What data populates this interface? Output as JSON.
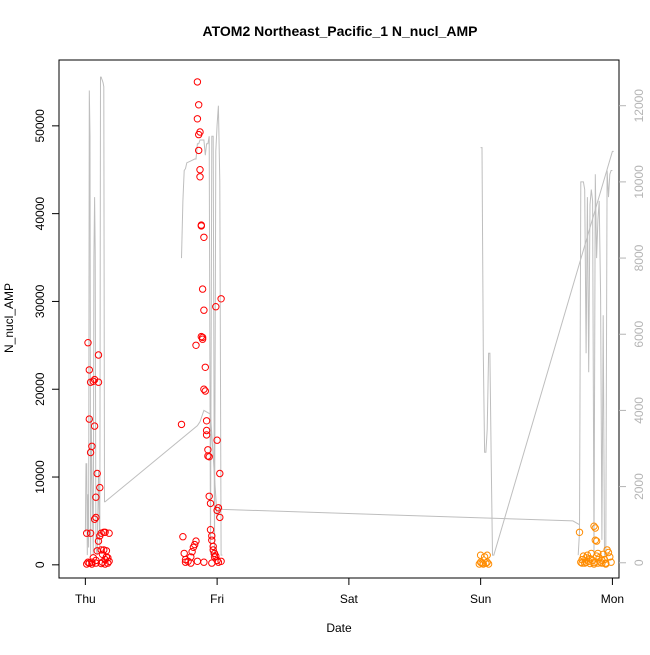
{
  "chart_data": {
    "type": "scatter",
    "title": "ATOM2 Northeast_Pacific_1 N_nucl_AMP",
    "xlabel": "Date",
    "ylabel": "N_nucl_AMP",
    "x_ticks": [
      "Thu",
      "Fri",
      "Sat",
      "Sun",
      "Mon"
    ],
    "xlim": [
      -0.2,
      4.05
    ],
    "ylim_left": [
      -1500,
      57500
    ],
    "y_ticks_left": [
      0,
      10000,
      20000,
      30000,
      40000,
      50000
    ],
    "ylim_right": [
      -400,
      13200
    ],
    "y_ticks_right": [
      0,
      2000,
      4000,
      6000,
      8000,
      10000,
      12000
    ],
    "colors": {
      "red": "#ff0000",
      "orange": "#ff8c00",
      "line": "#bebebe",
      "right_axis": "#b4b4b4",
      "axis": "#000000"
    },
    "grid": false,
    "legend": "none",
    "series": [
      {
        "color": "#ff0000",
        "style": "open-circle",
        "points": [
          [
            0.01,
            100
          ],
          [
            0.01,
            3600
          ],
          [
            0.02,
            25300
          ],
          [
            0.02,
            300
          ],
          [
            0.03,
            16600
          ],
          [
            0.03,
            22200
          ],
          [
            0.03,
            200
          ],
          [
            0.04,
            20800
          ],
          [
            0.04,
            12800
          ],
          [
            0.04,
            3600
          ],
          [
            0.05,
            13500
          ],
          [
            0.05,
            300
          ],
          [
            0.06,
            20900
          ],
          [
            0.06,
            800
          ],
          [
            0.07,
            21100
          ],
          [
            0.07,
            15800
          ],
          [
            0.07,
            5200
          ],
          [
            0.08,
            5400
          ],
          [
            0.08,
            7700
          ],
          [
            0.08,
            500
          ],
          [
            0.09,
            10400
          ],
          [
            0.09,
            1600
          ],
          [
            0.1,
            20800
          ],
          [
            0.1,
            23900
          ],
          [
            0.1,
            2700
          ],
          [
            0.11,
            3300
          ],
          [
            0.11,
            8800
          ],
          [
            0.12,
            1700
          ],
          [
            0.12,
            3600
          ],
          [
            0.13,
            300
          ],
          [
            0.13,
            1200
          ],
          [
            0.14,
            1700
          ],
          [
            0.14,
            3700
          ],
          [
            0.15,
            3700
          ],
          [
            0.15,
            600
          ],
          [
            0.16,
            900
          ],
          [
            0.16,
            1600
          ],
          [
            0.17,
            200
          ],
          [
            0.17,
            800
          ],
          [
            0.18,
            3600
          ],
          [
            0.18,
            400
          ],
          [
            0.05,
            100
          ],
          [
            0.08,
            200
          ],
          [
            0.12,
            150
          ],
          [
            0.15,
            100
          ],
          [
            0.73,
            16000
          ],
          [
            0.74,
            3200
          ],
          [
            0.75,
            1300
          ],
          [
            0.76,
            600
          ],
          [
            0.78,
            400
          ],
          [
            0.8,
            900
          ],
          [
            0.81,
            1500
          ],
          [
            0.82,
            2000
          ],
          [
            0.83,
            2300
          ],
          [
            0.84,
            2700
          ],
          [
            0.84,
            25000
          ],
          [
            0.85,
            55000
          ],
          [
            0.85,
            50800
          ],
          [
            0.86,
            47200
          ],
          [
            0.86,
            49000
          ],
          [
            0.86,
            52400
          ],
          [
            0.87,
            45000
          ],
          [
            0.87,
            44200
          ],
          [
            0.87,
            49300
          ],
          [
            0.88,
            38700
          ],
          [
            0.88,
            38600
          ],
          [
            0.88,
            26000
          ],
          [
            0.89,
            25700
          ],
          [
            0.89,
            25900
          ],
          [
            0.89,
            31400
          ],
          [
            0.9,
            29000
          ],
          [
            0.9,
            37300
          ],
          [
            0.9,
            20000
          ],
          [
            0.91,
            22500
          ],
          [
            0.91,
            19800
          ],
          [
            0.92,
            16400
          ],
          [
            0.92,
            15300
          ],
          [
            0.92,
            14800
          ],
          [
            0.93,
            13100
          ],
          [
            0.93,
            12400
          ],
          [
            0.94,
            12300
          ],
          [
            0.94,
            7800
          ],
          [
            0.95,
            7000
          ],
          [
            0.95,
            4000
          ],
          [
            0.96,
            3300
          ],
          [
            0.96,
            2800
          ],
          [
            0.97,
            2100
          ],
          [
            0.97,
            1700
          ],
          [
            0.98,
            1300
          ],
          [
            0.98,
            900
          ],
          [
            0.99,
            29400
          ],
          [
            1.0,
            14200
          ],
          [
            1.0,
            6200
          ],
          [
            1.01,
            6500
          ],
          [
            1.02,
            10400
          ],
          [
            1.02,
            5400
          ],
          [
            1.03,
            30300
          ],
          [
            1.0,
            500
          ],
          [
            1.01,
            300
          ],
          [
            0.96,
            200
          ],
          [
            0.9,
            300
          ],
          [
            0.85,
            400
          ],
          [
            0.8,
            200
          ],
          [
            0.76,
            300
          ],
          [
            1.03,
            400
          ],
          [
            0.99,
            1000
          ]
        ]
      },
      {
        "color": "#ff8c00",
        "style": "open-circle",
        "points": [
          [
            2.99,
            100
          ],
          [
            3.0,
            1100
          ],
          [
            3.0,
            300
          ],
          [
            3.01,
            200
          ],
          [
            3.02,
            100
          ],
          [
            3.03,
            900
          ],
          [
            3.04,
            200
          ],
          [
            3.05,
            1100
          ],
          [
            3.05,
            300
          ],
          [
            3.06,
            100
          ],
          [
            3.75,
            3700
          ],
          [
            3.76,
            300
          ],
          [
            3.77,
            600
          ],
          [
            3.78,
            1000
          ],
          [
            3.79,
            200
          ],
          [
            3.8,
            800
          ],
          [
            3.81,
            1100
          ],
          [
            3.82,
            400
          ],
          [
            3.83,
            700
          ],
          [
            3.84,
            1300
          ],
          [
            3.85,
            500
          ],
          [
            3.86,
            100
          ],
          [
            3.86,
            4400
          ],
          [
            3.87,
            4200
          ],
          [
            3.87,
            2800
          ],
          [
            3.88,
            2700
          ],
          [
            3.88,
            1000
          ],
          [
            3.89,
            1300
          ],
          [
            3.9,
            800
          ],
          [
            3.91,
            300
          ],
          [
            3.92,
            500
          ],
          [
            3.93,
            1200
          ],
          [
            3.94,
            600
          ],
          [
            3.95,
            200
          ],
          [
            3.96,
            1700
          ],
          [
            3.97,
            1400
          ],
          [
            3.98,
            900
          ],
          [
            3.99,
            300
          ],
          [
            3.77,
            200
          ],
          [
            3.8,
            300
          ],
          [
            3.83,
            150
          ],
          [
            3.86,
            250
          ],
          [
            3.89,
            200
          ],
          [
            3.92,
            200
          ],
          [
            3.95,
            100
          ]
        ]
      }
    ],
    "line_series": {
      "axis": "right",
      "color": "#bebebe",
      "segments": [
        [
          [
            0.0,
            800
          ],
          [
            0.005,
            2600
          ],
          [
            0.01,
            2600
          ],
          [
            0.015,
            200
          ],
          [
            0.02,
            1800
          ],
          [
            0.025,
            400
          ],
          [
            0.03,
            12400
          ],
          [
            0.035,
            11200
          ],
          [
            0.04,
            200
          ],
          [
            0.045,
            3800
          ],
          [
            0.05,
            2400
          ],
          [
            0.06,
            200
          ],
          [
            0.065,
            8000
          ],
          [
            0.07,
            9600
          ],
          [
            0.075,
            8200
          ],
          [
            0.08,
            400
          ],
          [
            0.09,
            200
          ],
          [
            0.1,
            2400
          ],
          [
            0.11,
            400
          ],
          [
            0.115,
            12750
          ],
          [
            0.12,
            12750
          ],
          [
            0.125,
            12700
          ],
          [
            0.13,
            12650
          ],
          [
            0.135,
            12600
          ],
          [
            0.14,
            12500
          ],
          [
            0.145,
            1600
          ],
          [
            0.15,
            1600
          ],
          [
            0.85,
            3600
          ],
          [
            0.86,
            3650
          ],
          [
            0.87,
            3700
          ],
          [
            0.9,
            4000
          ],
          [
            0.95,
            3900
          ],
          [
            1.0,
            1200
          ],
          [
            1.02,
            1500
          ],
          [
            1.04,
            1400
          ],
          [
            3.7,
            1100
          ],
          [
            3.75,
            1000
          ]
        ],
        [
          [
            0.73,
            8000
          ],
          [
            0.74,
            9500
          ],
          [
            0.75,
            10300
          ],
          [
            0.76,
            10350
          ],
          [
            0.77,
            10500
          ],
          [
            0.8,
            10550
          ],
          [
            0.83,
            10600
          ],
          [
            0.84,
            10600
          ],
          [
            0.845,
            10800
          ],
          [
            0.85,
            11000
          ],
          [
            0.86,
            11000
          ],
          [
            0.87,
            11100
          ],
          [
            0.9,
            11100
          ],
          [
            0.91,
            10700
          ],
          [
            0.92,
            11000
          ],
          [
            0.93,
            11000
          ],
          [
            0.94,
            11200
          ],
          [
            0.95,
            200
          ],
          [
            0.96,
            11200
          ],
          [
            0.97,
            11200
          ],
          [
            0.98,
            200
          ],
          [
            0.99,
            10800
          ],
          [
            1.0,
            11500
          ],
          [
            1.01,
            12000
          ],
          [
            1.02,
            10000
          ],
          [
            1.03,
            200
          ],
          [
            1.04,
            200
          ]
        ],
        [
          [
            3.0,
            10900
          ],
          [
            3.01,
            10900
          ],
          [
            3.02,
            5500
          ],
          [
            3.03,
            2900
          ],
          [
            3.04,
            2900
          ],
          [
            3.05,
            3500
          ],
          [
            3.06,
            5500
          ],
          [
            3.07,
            5500
          ],
          [
            3.08,
            2700
          ],
          [
            3.09,
            200
          ],
          [
            3.1,
            200
          ],
          [
            4.0,
            10800
          ],
          [
            4.01,
            10800
          ]
        ],
        [
          [
            3.74,
            200
          ],
          [
            3.75,
            800
          ],
          [
            3.76,
            10000
          ],
          [
            3.77,
            10000
          ],
          [
            3.78,
            10000
          ],
          [
            3.79,
            9800
          ],
          [
            3.8,
            5500
          ],
          [
            3.81,
            9600
          ],
          [
            3.82,
            5000
          ],
          [
            3.83,
            9400
          ],
          [
            3.84,
            9800
          ],
          [
            3.85,
            9500
          ],
          [
            3.86,
            200
          ],
          [
            3.87,
            10200
          ],
          [
            3.88,
            8000
          ],
          [
            3.89,
            9000
          ],
          [
            3.9,
            9500
          ],
          [
            3.91,
            7000
          ],
          [
            3.92,
            600
          ],
          [
            3.93,
            6500
          ],
          [
            3.94,
            200
          ],
          [
            3.95,
            200
          ],
          [
            3.96,
            10300
          ],
          [
            3.97,
            9600
          ],
          [
            3.98,
            10200
          ],
          [
            3.99,
            10300
          ],
          [
            4.0,
            10300
          ]
        ]
      ]
    }
  }
}
